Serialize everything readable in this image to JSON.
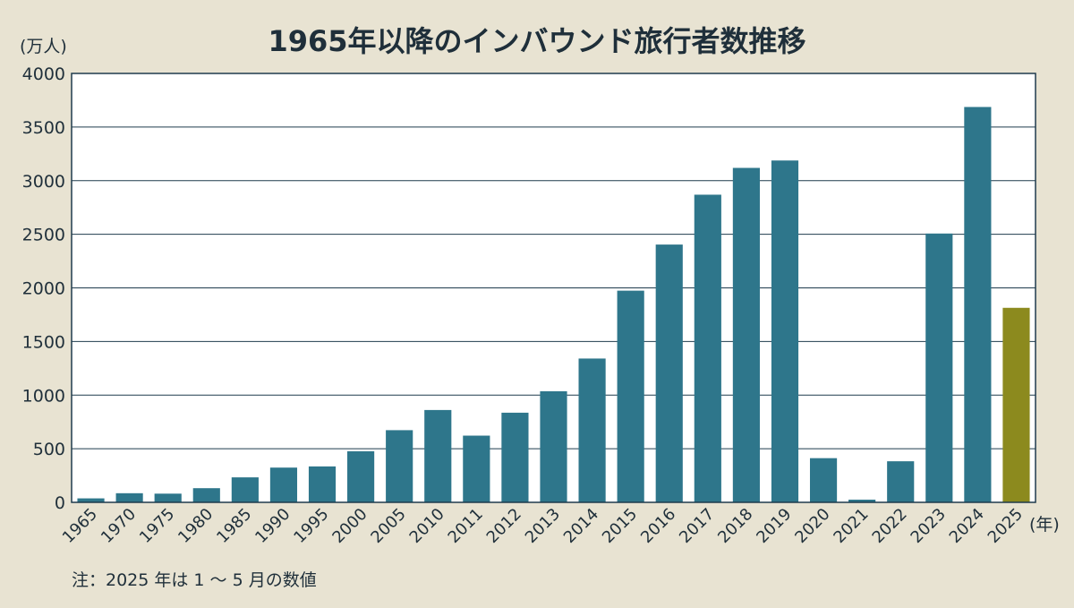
{
  "chart_data": {
    "type": "bar",
    "title": "1965年以降のインバウンド旅行者数推移",
    "ylabel": "(万人)",
    "xlabel": "(年)",
    "note": "注：2025 年は 1 ～ 5 月の数値",
    "ylim": [
      0,
      4000
    ],
    "yticks": [
      "0",
      "500",
      "1000",
      "1500",
      "2000",
      "2500",
      "3000",
      "3500",
      "4000"
    ],
    "grid": true,
    "categories": [
      "1965",
      "1970",
      "1975",
      "1980",
      "1985",
      "1990",
      "1995",
      "2000",
      "2005",
      "2010",
      "2011",
      "2012",
      "2013",
      "2014",
      "2015",
      "2016",
      "2017",
      "2018",
      "2019",
      "2020",
      "2021",
      "2022",
      "2023",
      "2024",
      "2025"
    ],
    "values": [
      37,
      85,
      81,
      132,
      233,
      324,
      335,
      476,
      673,
      861,
      622,
      836,
      1036,
      1341,
      1974,
      2404,
      2869,
      3119,
      3188,
      412,
      25,
      383,
      2507,
      3687,
      1814
    ],
    "colors": {
      "bar": "#2e768b",
      "highlight": "#8c8a1e",
      "highlight_category": "2025",
      "grid": "#1f3b4d",
      "background": "#e8e3d2",
      "plot_background": "#ffffff"
    }
  }
}
